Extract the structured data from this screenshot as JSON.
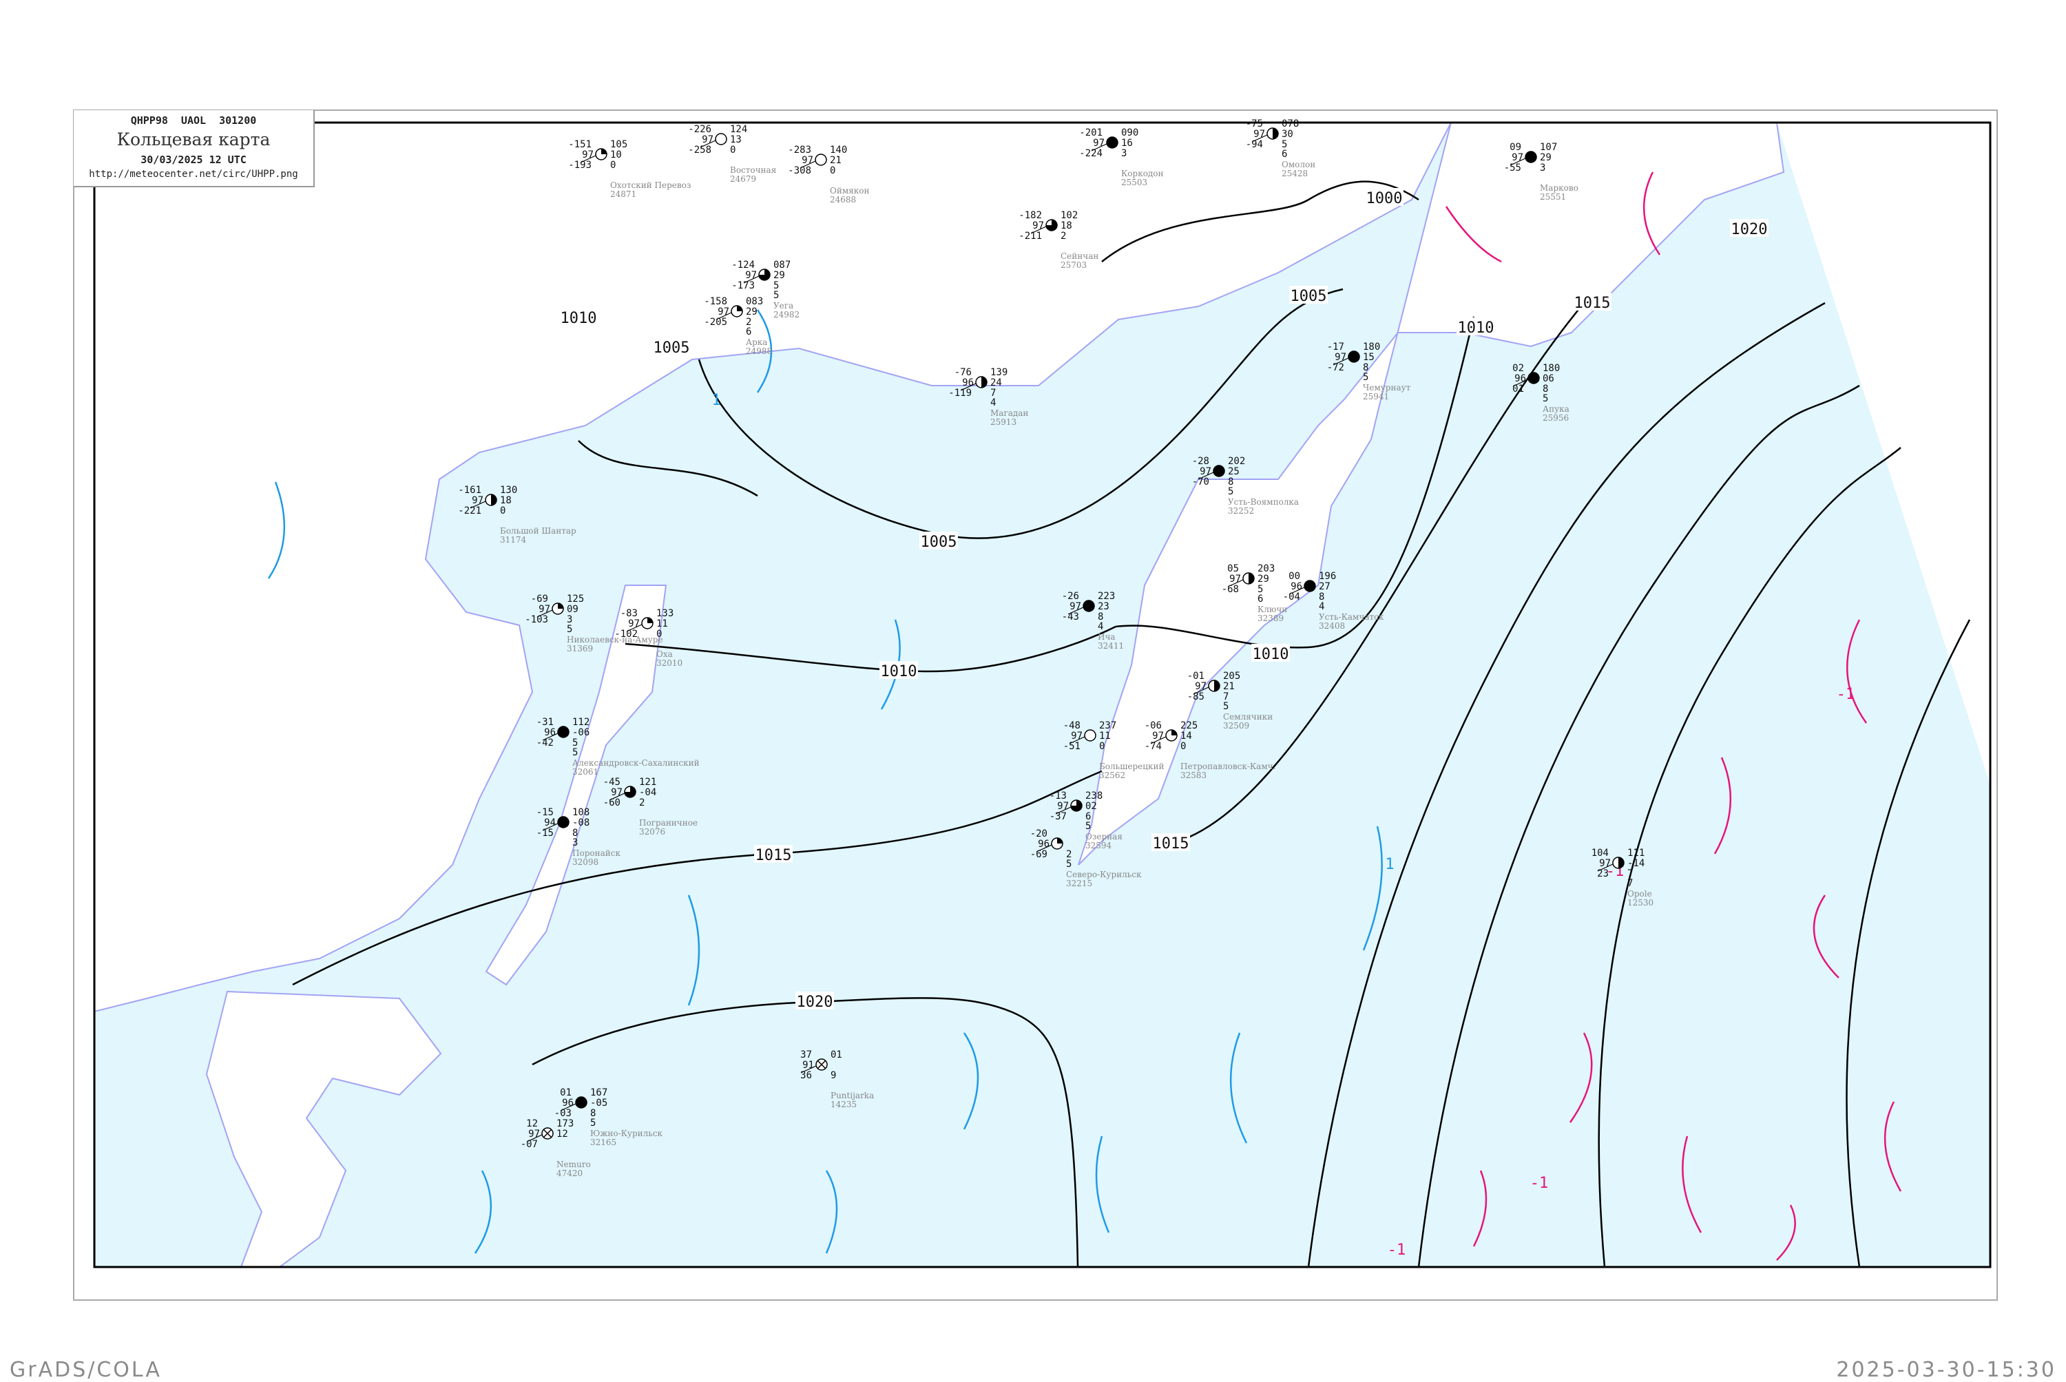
{
  "header": {
    "code_line": "QHPP98  UAOL  301200",
    "title": "Кольцевая карта",
    "date": "30/03/2025 12 UTC",
    "url": "http://meteocenter.net/circ/UHPP.png"
  },
  "footer": {
    "left": "GrADS/COLA",
    "right": "2025-03-30-15:30"
  },
  "colors": {
    "sea": "#e1f6fd",
    "land": "#ffffff",
    "coastline": "#a3a3f5",
    "isobar": "#000000",
    "isotherm_positive": "#1e9be6",
    "isotherm_negative": "#e6147d",
    "precip_marker": "#3399ff",
    "station_name": "#888888"
  },
  "isobar_labels": [
    "1000",
    "1005",
    "1005",
    "1005",
    "1010",
    "1010",
    "1010",
    "1010",
    "1015",
    "1015",
    "1015",
    "1020",
    "1020"
  ],
  "isotherm_labels": [
    "1",
    "1",
    "-1",
    "-1",
    "-1",
    "-1"
  ],
  "stations": [
    {
      "name": "Магадан",
      "index": "25913",
      "tl": "-76",
      "l": "96",
      "bl": "-119",
      "tr": "139",
      "r": "24",
      "br": "7",
      "br2": "4",
      "cover": 4
    },
    {
      "name": "Ича",
      "index": "32411",
      "tl": "-26",
      "l": "97",
      "bl": "-43",
      "tr": "223",
      "r": "23",
      "br": "8",
      "br2": "4",
      "cover": 8
    },
    {
      "name": "Puntijarka",
      "index": "14235",
      "tl": "37",
      "l": "91",
      "bl": "36",
      "tr": "01",
      "r": "",
      "br": "9",
      "br2": "",
      "cover": 9
    },
    {
      "name": "Opole",
      "index": "12530",
      "tl": "104",
      "l": "97",
      "bl": "23",
      "tr": "111",
      "r": "-14",
      "br": "7",
      "br2": "7",
      "cover": 4
    },
    {
      "name": "Чемурнаут",
      "index": "25941",
      "tl": "-17",
      "l": "97",
      "bl": "-72",
      "tr": "180",
      "r": "15",
      "br": "8",
      "br2": "5",
      "cover": 8
    },
    {
      "name": "Усть-Воямполка",
      "index": "32252",
      "tl": "-28",
      "l": "97",
      "bl": "-70",
      "tr": "202",
      "r": "25",
      "br": "8",
      "br2": "5",
      "cover": 8
    },
    {
      "name": "Марково",
      "index": "25551",
      "tl": "09",
      "l": "97",
      "bl": "-55",
      "tr": "107",
      "r": "29",
      "br": "3",
      "br2": "",
      "cover": 8
    },
    {
      "name": "Апука",
      "index": "25956",
      "tl": "02",
      "l": "96",
      "bl": "01",
      "tr": "180",
      "r": "06",
      "br": "8",
      "br2": "5",
      "cover": 8
    },
    {
      "name": "Большерецкий",
      "index": "32562",
      "tl": "-48",
      "l": "97",
      "bl": "-51",
      "tr": "237",
      "r": "11",
      "br": "0",
      "br2": "",
      "cover": 0
    },
    {
      "name": "Петропавловск-Камч.",
      "index": "32583",
      "tl": "-06",
      "l": "97",
      "bl": "-74",
      "tr": "225",
      "r": "14",
      "br": "0",
      "br2": "",
      "cover": 2
    },
    {
      "name": "Озерная",
      "index": "32594",
      "tl": "-13",
      "l": "97",
      "bl": "-37",
      "tr": "238",
      "r": "02",
      "br": "6",
      "br2": "5",
      "cover": 6
    },
    {
      "name": "Северо-Курильск",
      "index": "32215",
      "tl": "-20",
      "l": "96",
      "bl": "-69",
      "tr": "",
      "r": "",
      "br": "2",
      "br2": "5",
      "cover": 2
    },
    {
      "name": "Ключи",
      "index": "32389",
      "tl": "05",
      "l": "97",
      "bl": "-68",
      "tr": "203",
      "r": "29",
      "br": "5",
      "br2": "6",
      "cover": 4
    },
    {
      "name": "Усть-Камчатск",
      "index": "32408",
      "tl": "00",
      "l": "96",
      "bl": "-04",
      "tr": "196",
      "r": "27",
      "br": "8",
      "br2": "4",
      "cover": 8
    },
    {
      "name": "Семлячики",
      "index": "32509",
      "tl": "-01",
      "l": "97",
      "bl": "-85",
      "tr": "205",
      "r": "21",
      "br": "7",
      "br2": "5",
      "cover": 4
    },
    {
      "name": "Большой Шантар",
      "index": "31174",
      "tl": "-161",
      "l": "97",
      "bl": "-221",
      "tr": "130",
      "r": "18",
      "br": "0",
      "br2": "",
      "cover": 4
    },
    {
      "name": "Николаевск-на-Амуре",
      "index": "31369",
      "tl": "-69",
      "l": "97",
      "bl": "-103",
      "tr": "125",
      "r": "09",
      "br": "3",
      "br2": "5",
      "cover": 2
    },
    {
      "name": "Оха",
      "index": "32010",
      "tl": "-83",
      "l": "97",
      "bl": "-102",
      "tr": "133",
      "r": "11",
      "br": "0",
      "br2": "",
      "cover": 2
    },
    {
      "name": "Александровск-Сахалинский",
      "index": "32061",
      "tl": "-31",
      "l": "96",
      "bl": "-42",
      "tr": "112",
      "r": "-06",
      "br": "5",
      "br2": "5",
      "cover": 8
    },
    {
      "name": "Пограничное",
      "index": "32076",
      "tl": "-45",
      "l": "97",
      "bl": "-60",
      "tr": "121",
      "r": "-04",
      "br": "2",
      "br2": "",
      "cover": 6
    },
    {
      "name": "Поронайск",
      "index": "32098",
      "tl": "-15",
      "l": "94",
      "bl": "-15",
      "tr": "108",
      "r": "-08",
      "br": "8",
      "br2": "3",
      "cover": 8
    },
    {
      "name": "Южно-Курильск",
      "index": "32165",
      "tl": "01",
      "l": "96",
      "bl": "-03",
      "tr": "167",
      "r": "-05",
      "br": "8",
      "br2": "5",
      "cover": 8
    },
    {
      "name": "Nemuro",
      "index": "47420",
      "tl": "12",
      "l": "97",
      "bl": "-07",
      "tr": "173",
      "r": "12",
      "br": "",
      "br2": "",
      "cover": 9
    },
    {
      "name": "Охотский Перевоз",
      "index": "24871",
      "tl": "-151",
      "l": "97",
      "bl": "-193",
      "tr": "105",
      "r": "10",
      "br": "0",
      "br2": "",
      "cover": 2
    },
    {
      "name": "Восточная",
      "index": "24679",
      "tl": "-226",
      "l": "97",
      "bl": "-258",
      "tr": "124",
      "r": "13",
      "br": "0",
      "br2": "",
      "cover": 0
    },
    {
      "name": "Оймякон",
      "index": "24688",
      "tl": "-283",
      "l": "97",
      "bl": "-308",
      "tr": "140",
      "r": "21",
      "br": "0",
      "br2": "",
      "cover": 0
    },
    {
      "name": "Уега",
      "index": "24982",
      "tl": "-124",
      "l": "97",
      "bl": "-173",
      "tr": "087",
      "r": "29",
      "br": "5",
      "br2": "5",
      "cover": 6
    },
    {
      "name": "Арка",
      "index": "24988",
      "tl": "-158",
      "l": "97",
      "bl": "-205",
      "tr": "083",
      "r": "29",
      "br": "2",
      "br2": "6",
      "cover": 2
    },
    {
      "name": "Коркодон",
      "index": "25503",
      "tl": "-201",
      "l": "97",
      "bl": "-224",
      "tr": "090",
      "r": "16",
      "br": "3",
      "br2": "",
      "cover": 8
    },
    {
      "name": "Сейнчан",
      "index": "25703",
      "tl": "-182",
      "l": "97",
      "bl": "-211",
      "tr": "102",
      "r": "18",
      "br": "2",
      "br2": "",
      "cover": 6
    },
    {
      "name": "Омолон",
      "index": "25428",
      "tl": "-75",
      "l": "97",
      "bl": "-94",
      "tr": "078",
      "r": "30",
      "br": "5",
      "br2": "6",
      "cover": 4
    }
  ]
}
